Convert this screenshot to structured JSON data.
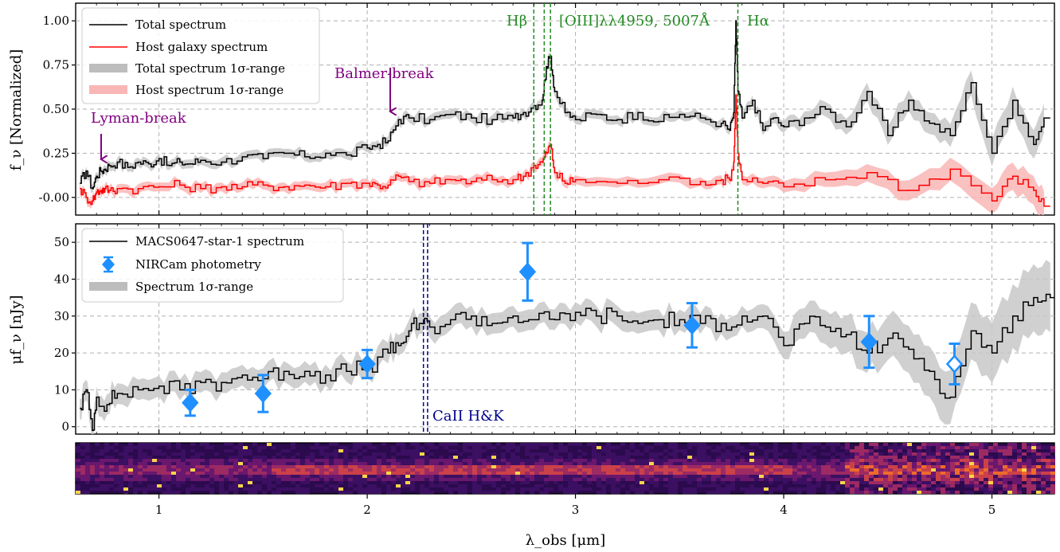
{
  "chart_data": [
    {
      "type": "line",
      "ylabel": "f_ν [Normalized]",
      "xlim": [
        0.6,
        5.3
      ],
      "ylim": [
        -0.1,
        1.1
      ],
      "yticks": [
        "-0.00",
        "0.25",
        "0.50",
        "0.75",
        "1.00"
      ],
      "legend": {
        "position": "top-left",
        "entries": [
          {
            "label": "Total spectrum",
            "color": "#000000",
            "kind": "line"
          },
          {
            "label": "Host galaxy spectrum",
            "color": "#ff0000",
            "kind": "line"
          },
          {
            "label": "Total spectrum 1σ-range",
            "color": "#bdbdbd",
            "kind": "band"
          },
          {
            "label": "Host spectrum 1σ-range",
            "color": "#f9b6b6",
            "kind": "band"
          }
        ]
      },
      "series": [
        {
          "name": "Total spectrum",
          "color": "#000000",
          "x": [
            0.62,
            0.65,
            0.68,
            0.7,
            0.72,
            0.74,
            0.76,
            0.8,
            0.85,
            0.9,
            0.95,
            1.0,
            1.05,
            1.1,
            1.15,
            1.2,
            1.3,
            1.4,
            1.5,
            1.6,
            1.7,
            1.8,
            1.9,
            2.0,
            2.05,
            2.1,
            2.15,
            2.2,
            2.3,
            2.4,
            2.5,
            2.6,
            2.7,
            2.75,
            2.8,
            2.84,
            2.86,
            2.88,
            2.9,
            2.95,
            3.0,
            3.1,
            3.2,
            3.3,
            3.4,
            3.5,
            3.6,
            3.7,
            3.74,
            3.76,
            3.77,
            3.78,
            3.8,
            3.85,
            3.9,
            3.95,
            4.0,
            4.1,
            4.2,
            4.3,
            4.4,
            4.5,
            4.6,
            4.7,
            4.8,
            4.9,
            5.0,
            5.1,
            5.2,
            5.25
          ],
          "y": [
            0.08,
            0.15,
            0.05,
            0.12,
            0.15,
            0.16,
            0.18,
            0.2,
            0.17,
            0.2,
            0.19,
            0.22,
            0.18,
            0.2,
            0.19,
            0.21,
            0.2,
            0.23,
            0.22,
            0.25,
            0.23,
            0.25,
            0.24,
            0.28,
            0.3,
            0.32,
            0.44,
            0.45,
            0.44,
            0.47,
            0.45,
            0.44,
            0.45,
            0.48,
            0.52,
            0.55,
            0.74,
            0.8,
            0.6,
            0.48,
            0.44,
            0.47,
            0.44,
            0.48,
            0.43,
            0.47,
            0.45,
            0.42,
            0.38,
            0.48,
            1.0,
            0.6,
            0.45,
            0.55,
            0.38,
            0.45,
            0.4,
            0.45,
            0.5,
            0.4,
            0.6,
            0.35,
            0.55,
            0.42,
            0.35,
            0.65,
            0.25,
            0.55,
            0.3,
            0.45
          ]
        },
        {
          "name": "Host galaxy spectrum",
          "color": "#ff0000",
          "x": [
            0.62,
            0.65,
            0.68,
            0.7,
            0.72,
            0.74,
            0.76,
            0.8,
            0.9,
            1.0,
            1.1,
            1.2,
            1.3,
            1.4,
            1.5,
            1.6,
            1.7,
            1.8,
            1.9,
            2.0,
            2.05,
            2.1,
            2.15,
            2.2,
            2.3,
            2.4,
            2.5,
            2.6,
            2.7,
            2.75,
            2.8,
            2.84,
            2.86,
            2.88,
            2.9,
            2.95,
            3.0,
            3.2,
            3.4,
            3.6,
            3.7,
            3.74,
            3.76,
            3.77,
            3.78,
            3.8,
            3.9,
            4.0,
            4.2,
            4.4,
            4.6,
            4.8,
            5.0,
            5.1,
            5.2,
            5.25
          ],
          "y": [
            0.05,
            0.0,
            -0.02,
            0.03,
            0.04,
            0.05,
            0.04,
            0.05,
            0.05,
            0.06,
            0.07,
            0.05,
            0.06,
            0.06,
            0.07,
            0.06,
            0.07,
            0.06,
            0.08,
            0.08,
            0.07,
            0.07,
            0.12,
            0.09,
            0.08,
            0.1,
            0.09,
            0.1,
            0.1,
            0.12,
            0.18,
            0.2,
            0.25,
            0.3,
            0.14,
            0.08,
            0.1,
            0.08,
            0.1,
            0.09,
            0.1,
            0.1,
            0.2,
            0.58,
            0.25,
            0.1,
            0.08,
            0.06,
            0.1,
            0.14,
            0.04,
            0.16,
            -0.02,
            0.12,
            0.04,
            -0.05
          ]
        }
      ],
      "vlines": [
        {
          "x": 2.8,
          "label": "Hβ",
          "color": "#228b22"
        },
        {
          "x": 2.85,
          "label": "",
          "color": "#228b22"
        },
        {
          "x": 2.88,
          "label": "[OIII]λλ4959, 5007Å",
          "color": "#228b22"
        },
        {
          "x": 3.78,
          "label": "Hα",
          "color": "#228b22"
        }
      ],
      "annotations": [
        {
          "text": "Balmer-break",
          "x": 2.1,
          "color": "#800080"
        },
        {
          "text": "Lyman-break",
          "x": 0.72,
          "color": "#800080"
        }
      ]
    },
    {
      "type": "line",
      "ylabel": "μf_ν [nJy]",
      "xlim": [
        0.6,
        5.3
      ],
      "ylim": [
        -2,
        55
      ],
      "yticks": [
        "0",
        "10",
        "20",
        "30",
        "40",
        "50"
      ],
      "legend": {
        "position": "top-left",
        "entries": [
          {
            "label": "MACS0647-star-1 spectrum",
            "color": "#000000",
            "kind": "line"
          },
          {
            "label": "NIRCam photometry",
            "color": "#1e90ff",
            "kind": "marker"
          },
          {
            "label": "Spectrum 1σ-range",
            "color": "#bdbdbd",
            "kind": "band"
          }
        ]
      },
      "series": [
        {
          "name": "MACS0647-star-1 spectrum",
          "color": "#000000",
          "x": [
            0.62,
            0.65,
            0.68,
            0.7,
            0.75,
            0.8,
            0.9,
            1.0,
            1.1,
            1.2,
            1.3,
            1.4,
            1.5,
            1.6,
            1.7,
            1.8,
            1.9,
            2.0,
            2.1,
            2.15,
            2.2,
            2.25,
            2.3,
            2.4,
            2.5,
            2.6,
            2.7,
            2.8,
            2.9,
            3.0,
            3.1,
            3.2,
            3.3,
            3.4,
            3.5,
            3.6,
            3.7,
            3.8,
            3.9,
            4.0,
            4.1,
            4.2,
            4.3,
            4.4,
            4.5,
            4.6,
            4.7,
            4.8,
            4.9,
            5.0,
            5.1,
            5.2,
            5.28
          ],
          "y": [
            5,
            10,
            -1,
            8,
            6,
            9,
            10,
            11,
            10,
            12,
            12,
            14,
            13,
            15,
            15,
            14,
            15,
            16,
            20,
            22,
            26,
            28,
            27,
            29,
            30,
            28,
            30,
            29,
            29,
            31,
            30,
            30,
            28,
            29,
            29,
            28,
            28,
            30,
            30,
            22,
            28,
            27,
            25,
            20,
            24,
            21,
            15,
            8,
            26,
            20,
            30,
            35,
            35
          ]
        },
        {
          "name": "NIRCam photometry",
          "color": "#1e90ff",
          "kind": "errorbar",
          "x": [
            1.15,
            1.5,
            2.0,
            2.77,
            3.56,
            4.41,
            4.82
          ],
          "y": [
            6.5,
            9.0,
            17.0,
            42.0,
            27.5,
            23.0,
            17.0
          ],
          "yerr": [
            3.5,
            5.0,
            3.8,
            7.8,
            6.0,
            7.0,
            5.5
          ],
          "open": [
            false,
            false,
            false,
            false,
            false,
            false,
            true
          ]
        }
      ],
      "vlines": [
        {
          "x": 2.27,
          "label": "",
          "color": "#00008b"
        },
        {
          "x": 2.29,
          "label": "CaII H&K",
          "color": "#00008b"
        }
      ]
    },
    {
      "type": "heatmap",
      "xlabel": "λ_obs [μm]",
      "xticks": [
        "1",
        "2",
        "3",
        "4",
        "5"
      ],
      "colormap": "inferno"
    }
  ]
}
